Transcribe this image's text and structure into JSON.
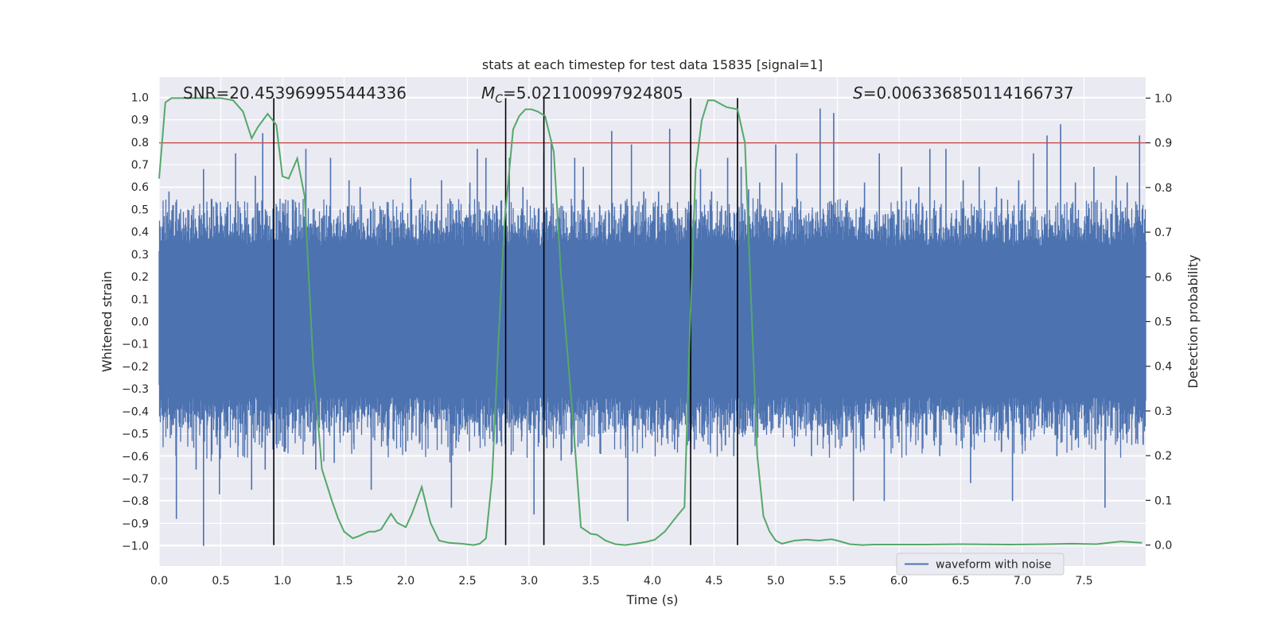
{
  "chart_data": {
    "type": "line",
    "title": "stats at each timestep for test data 15835 [signal=1]",
    "xlabel": "Time (s)",
    "ylabel": "Whitened strain",
    "y2label": "Detection probability",
    "xlim": [
      0.0,
      8.0
    ],
    "ylim": [
      -1.09,
      1.09
    ],
    "y2lim": [
      -0.047,
      1.047
    ],
    "xticks": [
      "0.0",
      "0.5",
      "1.0",
      "1.5",
      "2.0",
      "2.5",
      "3.0",
      "3.5",
      "4.0",
      "4.5",
      "5.0",
      "5.5",
      "6.0",
      "6.5",
      "7.0",
      "7.5"
    ],
    "yticks": [
      "−1.0",
      "−0.9",
      "−0.8",
      "−0.7",
      "−0.6",
      "−0.5",
      "−0.4",
      "−0.3",
      "−0.2",
      "−0.1",
      "0.0",
      "0.1",
      "0.2",
      "0.3",
      "0.4",
      "0.5",
      "0.6",
      "0.7",
      "0.8",
      "0.9",
      "1.0"
    ],
    "y2ticks": [
      "0.0",
      "0.1",
      "0.2",
      "0.3",
      "0.4",
      "0.5",
      "0.6",
      "0.7",
      "0.8",
      "0.9",
      "1.0"
    ],
    "annotations": {
      "snr": "SNR=20.453969955444336",
      "mc_prefix": "M",
      "mc_sub": "C",
      "mc_value": "=5.021100997924805",
      "s_prefix": "S",
      "s_value": "=0.006336850114166737"
    },
    "legend": [
      "waveform with noise"
    ],
    "threshold": 0.9,
    "vertical_lines": [
      0.93,
      2.81,
      3.12,
      4.31,
      4.69
    ],
    "series": [
      {
        "name": "waveform with noise",
        "axis": "left",
        "color": "#4c72b0",
        "noise_core": 0.36,
        "noise_envelope": 0.55,
        "spikes": [
          [
            0.08,
            0.58
          ],
          [
            0.14,
            -0.88
          ],
          [
            0.21,
            0.43
          ],
          [
            0.3,
            -0.66
          ],
          [
            0.36,
            -1.0
          ],
          [
            0.36,
            0.68
          ],
          [
            0.49,
            -0.77
          ],
          [
            0.55,
            0.51
          ],
          [
            0.62,
            0.75
          ],
          [
            0.68,
            -0.6
          ],
          [
            0.75,
            -0.75
          ],
          [
            0.78,
            0.65
          ],
          [
            0.84,
            0.84
          ],
          [
            0.86,
            -0.66
          ],
          [
            1.02,
            -0.58
          ],
          [
            1.19,
            0.77
          ],
          [
            1.27,
            -0.66
          ],
          [
            1.39,
            0.73
          ],
          [
            1.42,
            -0.63
          ],
          [
            1.54,
            0.63
          ],
          [
            1.63,
            0.6
          ],
          [
            1.72,
            -0.75
          ],
          [
            1.8,
            0.5
          ],
          [
            1.88,
            0.45
          ],
          [
            2.0,
            -0.58
          ],
          [
            2.04,
            0.64
          ],
          [
            2.29,
            0.63
          ],
          [
            2.37,
            -0.83
          ],
          [
            2.52,
            0.62
          ],
          [
            2.58,
            0.77
          ],
          [
            2.65,
            0.73
          ],
          [
            2.84,
            0.73
          ],
          [
            2.95,
            0.6
          ],
          [
            3.04,
            -0.86
          ],
          [
            3.12,
            0.75
          ],
          [
            3.18,
            0.81
          ],
          [
            3.26,
            -0.62
          ],
          [
            3.37,
            0.73
          ],
          [
            3.44,
            0.69
          ],
          [
            3.58,
            -0.59
          ],
          [
            3.67,
            0.85
          ],
          [
            3.8,
            -0.89
          ],
          [
            3.83,
            0.79
          ],
          [
            3.93,
            0.58
          ],
          [
            4.05,
            0.58
          ],
          [
            4.14,
            0.86
          ],
          [
            4.18,
            -0.57
          ],
          [
            4.34,
            -0.57
          ],
          [
            4.39,
            0.68
          ],
          [
            4.48,
            0.58
          ],
          [
            4.61,
            0.73
          ],
          [
            4.66,
            -0.6
          ],
          [
            4.72,
            0.69
          ],
          [
            4.78,
            0.59
          ],
          [
            4.87,
            0.62
          ],
          [
            5.0,
            0.79
          ],
          [
            5.05,
            0.62
          ],
          [
            5.17,
            0.75
          ],
          [
            5.29,
            -0.6
          ],
          [
            5.36,
            0.95
          ],
          [
            5.47,
            0.93
          ],
          [
            5.58,
            0.54
          ],
          [
            5.63,
            -0.8
          ],
          [
            5.72,
            0.62
          ],
          [
            5.84,
            0.75
          ],
          [
            5.88,
            -0.8
          ],
          [
            6.02,
            0.69
          ],
          [
            6.16,
            0.6
          ],
          [
            6.25,
            0.77
          ],
          [
            6.33,
            -0.6
          ],
          [
            6.38,
            0.77
          ],
          [
            6.52,
            0.63
          ],
          [
            6.58,
            -0.72
          ],
          [
            6.65,
            0.69
          ],
          [
            6.79,
            0.6
          ],
          [
            6.92,
            -0.8
          ],
          [
            6.97,
            0.63
          ],
          [
            7.09,
            0.75
          ],
          [
            7.2,
            0.83
          ],
          [
            7.28,
            -0.6
          ],
          [
            7.31,
            0.88
          ],
          [
            7.43,
            0.62
          ],
          [
            7.58,
            0.69
          ],
          [
            7.67,
            -0.83
          ],
          [
            7.76,
            0.65
          ],
          [
            7.85,
            0.62
          ],
          [
            7.95,
            0.83
          ],
          [
            7.98,
            -0.55
          ]
        ]
      },
      {
        "name": "detection probability",
        "axis": "right",
        "color": "#55a868",
        "x": [
          0.0,
          0.05,
          0.1,
          0.2,
          0.3,
          0.4,
          0.5,
          0.6,
          0.68,
          0.75,
          0.8,
          0.88,
          0.95,
          1.0,
          1.05,
          1.12,
          1.18,
          1.25,
          1.32,
          1.4,
          1.45,
          1.5,
          1.57,
          1.62,
          1.7,
          1.75,
          1.8,
          1.88,
          1.93,
          2.0,
          2.05,
          2.13,
          2.2,
          2.27,
          2.35,
          2.45,
          2.55,
          2.6,
          2.65,
          2.7,
          2.75,
          2.8,
          2.87,
          2.92,
          2.97,
          3.02,
          3.07,
          3.13,
          3.2,
          3.26,
          3.35,
          3.42,
          3.5,
          3.55,
          3.62,
          3.7,
          3.78,
          3.86,
          3.95,
          4.02,
          4.1,
          4.2,
          4.26,
          4.3,
          4.35,
          4.4,
          4.45,
          4.5,
          4.6,
          4.69,
          4.75,
          4.8,
          4.85,
          4.9,
          4.95,
          5.0,
          5.05,
          5.15,
          5.25,
          5.35,
          5.45,
          5.5,
          5.6,
          5.7,
          5.8,
          6.0,
          6.2,
          6.5,
          6.9,
          7.2,
          7.4,
          7.6,
          7.8,
          7.97
        ],
        "y": [
          0.82,
          0.99,
          1.0,
          1.0,
          1.0,
          1.0,
          1.0,
          0.995,
          0.97,
          0.91,
          0.935,
          0.965,
          0.94,
          0.825,
          0.82,
          0.865,
          0.78,
          0.4,
          0.17,
          0.1,
          0.06,
          0.03,
          0.015,
          0.02,
          0.03,
          0.03,
          0.035,
          0.07,
          0.05,
          0.04,
          0.07,
          0.13,
          0.05,
          0.01,
          0.005,
          0.003,
          0.0,
          0.003,
          0.015,
          0.15,
          0.45,
          0.72,
          0.93,
          0.96,
          0.975,
          0.975,
          0.97,
          0.96,
          0.88,
          0.6,
          0.3,
          0.04,
          0.025,
          0.023,
          0.01,
          0.002,
          0.0,
          0.003,
          0.007,
          0.012,
          0.03,
          0.065,
          0.085,
          0.45,
          0.84,
          0.95,
          0.995,
          0.995,
          0.98,
          0.975,
          0.9,
          0.55,
          0.2,
          0.065,
          0.03,
          0.01,
          0.003,
          0.01,
          0.012,
          0.01,
          0.013,
          0.01,
          0.002,
          0.0,
          0.001,
          0.001,
          0.001,
          0.002,
          0.001,
          0.002,
          0.003,
          0.002,
          0.008,
          0.005
        ]
      }
    ]
  }
}
